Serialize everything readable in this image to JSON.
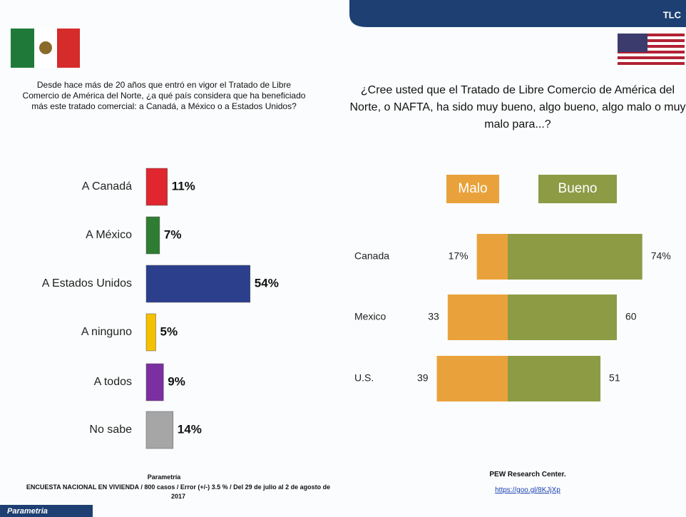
{
  "header": {
    "tag": "TLC"
  },
  "chart_data": [
    {
      "type": "bar",
      "title": "Desde hace más de 20 años que entró en vigor el Tratado de Libre Comercio de América del Norte, ¿a qué país considera que ha beneficiado más este tratado comercial: a Canadá, a México o a Estados Unidos?",
      "categories": [
        "A Canadá",
        "A México",
        "A Estados Unidos",
        "A ninguno",
        "A todos",
        "No sabe"
      ],
      "values": [
        11,
        7,
        54,
        5,
        9,
        14
      ],
      "value_labels": [
        "11%",
        "7%",
        "54%",
        "5%",
        "9%",
        "14%"
      ],
      "colors": [
        "#e0262e",
        "#2e7d32",
        "#2b3f8c",
        "#f5c000",
        "#7b2fa0",
        "#a6a6a6"
      ],
      "source": "Parametría",
      "note": "ENCUESTA NACIONAL EN VIVIENDA / 800 casos / Error (+/-) 3.5 % / Del 29 de julio al 2 de agosto de 2017"
    },
    {
      "type": "diverging_bar",
      "title": "¿Cree usted que el Tratado de Libre Comercio de América del Norte, o NAFTA, ha sido muy bueno, algo bueno, algo malo o muy malo para...?",
      "categories": [
        "Canada",
        "Mexico",
        "U.S."
      ],
      "series": [
        {
          "name": "Malo",
          "color": "#e9a23b",
          "values": [
            17,
            33,
            39
          ],
          "value_labels": [
            "17%",
            "33",
            "39"
          ]
        },
        {
          "name": "Bueno",
          "color": "#8d9b45",
          "values": [
            74,
            60,
            51
          ],
          "value_labels": [
            "74%",
            "60",
            "51"
          ]
        }
      ],
      "source": "PEW Research Center.",
      "link": "https://goo.gl/8KJjXp"
    }
  ],
  "footer": {
    "brand": "Parametria"
  }
}
